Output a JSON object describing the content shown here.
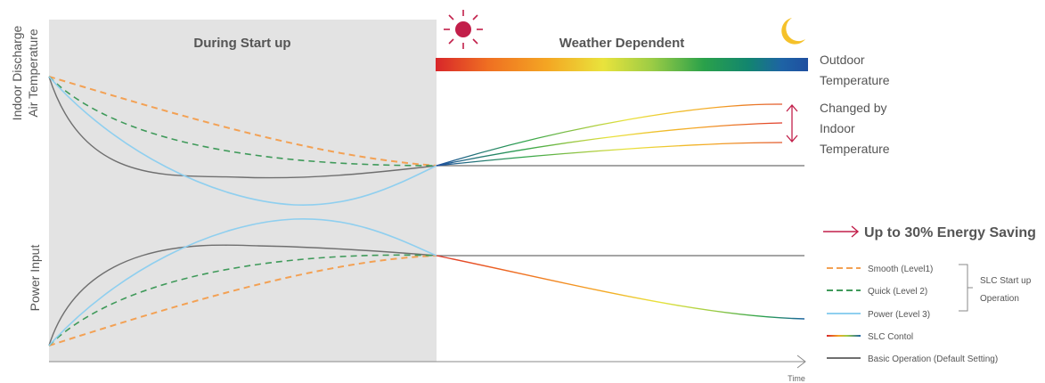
{
  "panels": {
    "startup_title": "During Start up",
    "weather_title": "Weather Dependent"
  },
  "axes": {
    "y_top_label_line1": "Indoor Discharge",
    "y_top_label_line2": "Air Temperature",
    "y_bottom_label": "Power Input",
    "x_label": "Time"
  },
  "side_labels": {
    "outdoor_line1": "Outdoor",
    "outdoor_line2": "Temperature",
    "changed_line1": "Changed by",
    "changed_line2": "Indoor",
    "changed_line3": "Temperature",
    "energy_saving": "Up to 30% Energy Saving"
  },
  "legend": {
    "items": [
      {
        "label": "Smooth (Level1)"
      },
      {
        "label": "Quick (Level 2)"
      },
      {
        "label": "Power (Level 3)"
      },
      {
        "label": "SLC Contol"
      },
      {
        "label": "Basic Operation (Default Setting)"
      }
    ],
    "group_line1": "SLC Start up",
    "group_line2": "Operation"
  },
  "icons": {
    "sun": "sun-icon",
    "moon": "moon-icon"
  },
  "colors": {
    "startup_bg": "#e3e3e3",
    "smooth": "#f3a154",
    "quick": "#3f9a5a",
    "power": "#8fcfef",
    "basic": "#6f6f6f",
    "accent": "#c21f4a",
    "moon": "#f5c12a",
    "gradient": [
      "#d8262a",
      "#ef6f22",
      "#f4a623",
      "#e9e33c",
      "#9ccc45",
      "#2aa14a",
      "#12856f",
      "#1e63a5",
      "#1f4fa0"
    ]
  }
}
